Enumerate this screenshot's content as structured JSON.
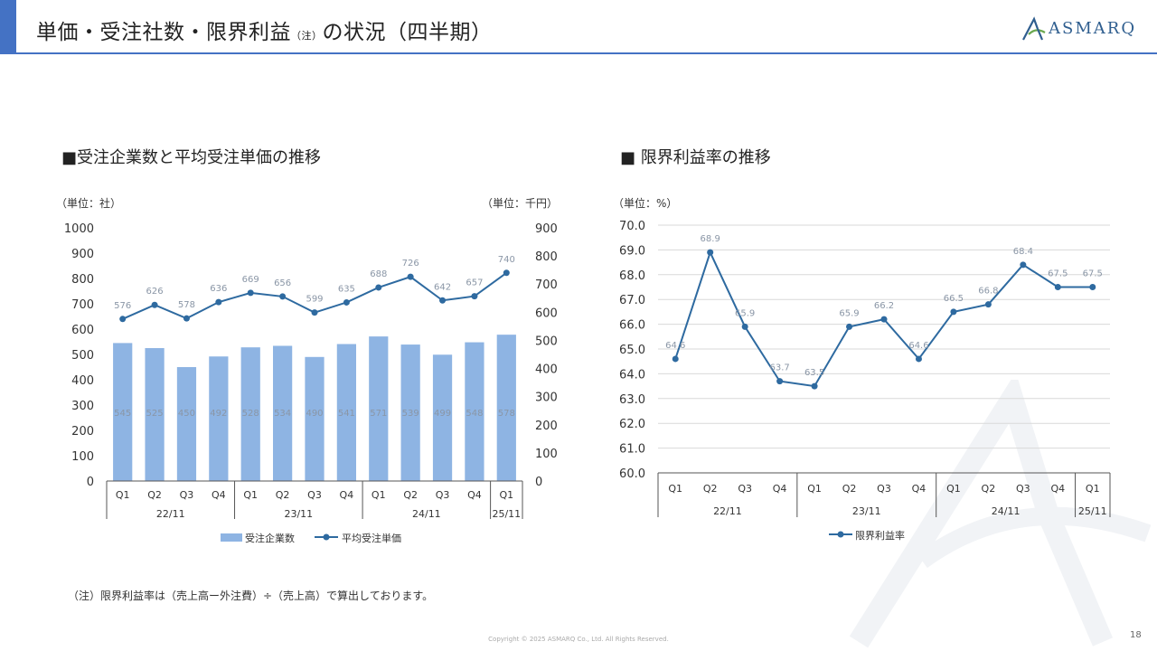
{
  "header": {
    "title_main": "単価・受注社数・限界利益",
    "title_note": "（注）",
    "title_rest": "の状況（四半期）",
    "logo_text": "ASMARQ"
  },
  "left_chart_section": {
    "title": "■受注企業数と平均受注単価の推移",
    "unit_left": "（単位：社）",
    "unit_right": "（単位：千円）"
  },
  "right_chart_section": {
    "title": "■ 限界利益率の推移",
    "unit": "（単位：%）"
  },
  "footnote": "（注）限界利益率は（売上高ー外注費）÷（売上高）で算出しております。",
  "copyright": "Copyright © 2025 ASMARQ Co., Ltd. All Rights Reserved.",
  "page_number": "18",
  "colors": {
    "accent": "#4472c4",
    "bar": "#8eb4e3",
    "line": "#2e6aa0"
  },
  "chart_data": [
    {
      "type": "bar+line",
      "title": "受注企業数と平均受注単価の推移",
      "categories": [
        "Q1",
        "Q2",
        "Q3",
        "Q4",
        "Q1",
        "Q2",
        "Q3",
        "Q4",
        "Q1",
        "Q2",
        "Q3",
        "Q4",
        "Q1"
      ],
      "fiscal_years": [
        {
          "label": "22/11",
          "count": 4
        },
        {
          "label": "23/11",
          "count": 4
        },
        {
          "label": "24/11",
          "count": 4
        },
        {
          "label": "25/11",
          "count": 1
        }
      ],
      "series": [
        {
          "name": "受注企業数",
          "type": "bar",
          "axis": "left",
          "values": [
            545,
            525,
            450,
            492,
            528,
            534,
            490,
            541,
            571,
            539,
            499,
            548,
            578
          ]
        },
        {
          "name": "平均受注単価",
          "type": "line",
          "axis": "right",
          "values": [
            576,
            626,
            578,
            636,
            669,
            656,
            599,
            635,
            688,
            726,
            642,
            657,
            740
          ]
        }
      ],
      "y_left": {
        "min": 0,
        "max": 1000,
        "step": 100,
        "ticks": [
          "0",
          "100",
          "200",
          "300",
          "400",
          "500",
          "600",
          "700",
          "800",
          "900",
          "1000"
        ]
      },
      "y_right": {
        "min": 0,
        "max": 900,
        "step": 100,
        "ticks": [
          "0",
          "100",
          "200",
          "300",
          "400",
          "500",
          "600",
          "700",
          "800",
          "900"
        ]
      }
    },
    {
      "type": "line",
      "title": "限界利益率の推移",
      "categories": [
        "Q1",
        "Q2",
        "Q3",
        "Q4",
        "Q1",
        "Q2",
        "Q3",
        "Q4",
        "Q1",
        "Q2",
        "Q3",
        "Q4",
        "Q1"
      ],
      "fiscal_years": [
        {
          "label": "22/11",
          "count": 4
        },
        {
          "label": "23/11",
          "count": 4
        },
        {
          "label": "24/11",
          "count": 4
        },
        {
          "label": "25/11",
          "count": 1
        }
      ],
      "series": [
        {
          "name": "限界利益率",
          "values": [
            64.6,
            68.9,
            65.9,
            63.7,
            63.5,
            65.9,
            66.2,
            64.6,
            66.5,
            66.8,
            68.4,
            67.5,
            67.5
          ]
        }
      ],
      "ylim": [
        60,
        70
      ],
      "ticks": [
        "60.0",
        "61.0",
        "62.0",
        "63.0",
        "64.0",
        "65.0",
        "66.0",
        "67.0",
        "68.0",
        "69.0",
        "70.0"
      ]
    }
  ]
}
